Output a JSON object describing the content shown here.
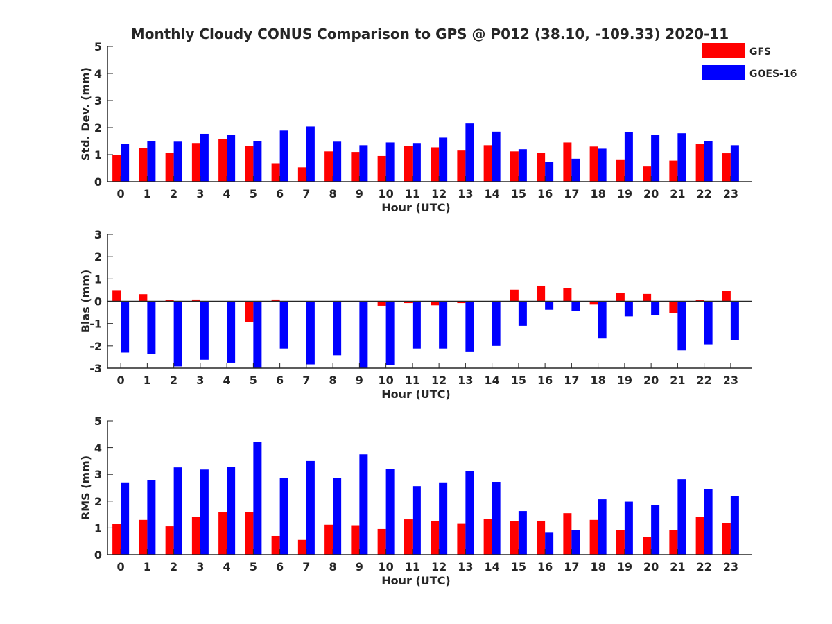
{
  "chart_data": [
    {
      "type": "bar",
      "title": "Monthly Cloudy CONUS Comparison to GPS @ P012 (38.10, -109.33) 2020-11",
      "xlabel": "Hour (UTC)",
      "ylabel": "Std. Dev. (mm)",
      "ylim": [
        0,
        5
      ],
      "yticks": [
        0,
        1,
        2,
        3,
        4,
        5
      ],
      "grid": false,
      "legend_position": "top-right",
      "categories": [
        "0",
        "1",
        "2",
        "3",
        "4",
        "5",
        "6",
        "7",
        "8",
        "9",
        "10",
        "11",
        "12",
        "13",
        "14",
        "15",
        "16",
        "17",
        "18",
        "19",
        "20",
        "21",
        "22",
        "23"
      ],
      "series": [
        {
          "name": "GFS",
          "color": "#ff0000",
          "values": [
            1.0,
            1.25,
            1.07,
            1.43,
            1.58,
            1.33,
            0.68,
            0.53,
            1.12,
            1.1,
            0.95,
            1.33,
            1.27,
            1.15,
            1.35,
            1.12,
            1.07,
            1.45,
            1.3,
            0.8,
            0.56,
            0.78,
            1.4,
            1.05
          ]
        },
        {
          "name": "GOES-16",
          "color": "#0000ff",
          "values": [
            1.4,
            1.5,
            1.48,
            1.77,
            1.74,
            1.5,
            1.89,
            2.04,
            1.48,
            1.35,
            1.45,
            1.43,
            1.63,
            2.15,
            1.85,
            1.2,
            0.74,
            0.85,
            1.22,
            1.83,
            1.74,
            1.79,
            1.51,
            1.35
          ]
        }
      ]
    },
    {
      "type": "bar",
      "title": "",
      "xlabel": "Hour (UTC)",
      "ylabel": "Bias (mm)",
      "ylim": [
        -3,
        3
      ],
      "yticks": [
        -3,
        -2,
        -1,
        0,
        1,
        2,
        3
      ],
      "zero_line": true,
      "grid": false,
      "categories": [
        "0",
        "1",
        "2",
        "3",
        "4",
        "5",
        "6",
        "7",
        "8",
        "9",
        "10",
        "11",
        "12",
        "13",
        "14",
        "15",
        "16",
        "17",
        "18",
        "19",
        "20",
        "21",
        "22",
        "23"
      ],
      "series": [
        {
          "name": "GFS",
          "color": "#ff0000",
          "values": [
            0.5,
            0.32,
            0.05,
            0.08,
            0.0,
            -0.92,
            0.08,
            0.0,
            0.0,
            0.0,
            -0.2,
            -0.08,
            -0.18,
            -0.08,
            0.0,
            0.52,
            0.7,
            0.58,
            -0.15,
            0.38,
            0.33,
            -0.52,
            0.05,
            0.48
          ]
        },
        {
          "name": "GOES-16",
          "color": "#0000ff",
          "values": [
            -2.3,
            -2.37,
            -2.92,
            -2.62,
            -2.75,
            -3.0,
            -2.12,
            -2.83,
            -2.42,
            -3.0,
            -2.87,
            -2.12,
            -2.12,
            -2.25,
            -2.0,
            -1.1,
            -0.38,
            -0.42,
            -1.67,
            -0.68,
            -0.62,
            -2.2,
            -1.93,
            -1.73
          ]
        }
      ]
    },
    {
      "type": "bar",
      "title": "",
      "xlabel": "Hour (UTC)",
      "ylabel": "RMS (mm)",
      "ylim": [
        0,
        5
      ],
      "yticks": [
        0,
        1,
        2,
        3,
        4,
        5
      ],
      "grid": false,
      "categories": [
        "0",
        "1",
        "2",
        "3",
        "4",
        "5",
        "6",
        "7",
        "8",
        "9",
        "10",
        "11",
        "12",
        "13",
        "14",
        "15",
        "16",
        "17",
        "18",
        "19",
        "20",
        "21",
        "22",
        "23"
      ],
      "series": [
        {
          "name": "GFS",
          "color": "#ff0000",
          "values": [
            1.14,
            1.3,
            1.06,
            1.42,
            1.58,
            1.6,
            0.7,
            0.55,
            1.12,
            1.1,
            0.96,
            1.32,
            1.27,
            1.15,
            1.33,
            1.25,
            1.27,
            1.55,
            1.3,
            0.91,
            0.65,
            0.93,
            1.4,
            1.17
          ]
        },
        {
          "name": "GOES-16",
          "color": "#0000ff",
          "values": [
            2.7,
            2.79,
            3.26,
            3.18,
            3.28,
            4.2,
            2.85,
            3.5,
            2.85,
            3.75,
            3.2,
            2.56,
            2.7,
            3.13,
            2.72,
            1.63,
            0.82,
            0.93,
            2.07,
            1.98,
            1.85,
            2.82,
            2.46,
            2.18
          ]
        }
      ]
    }
  ]
}
